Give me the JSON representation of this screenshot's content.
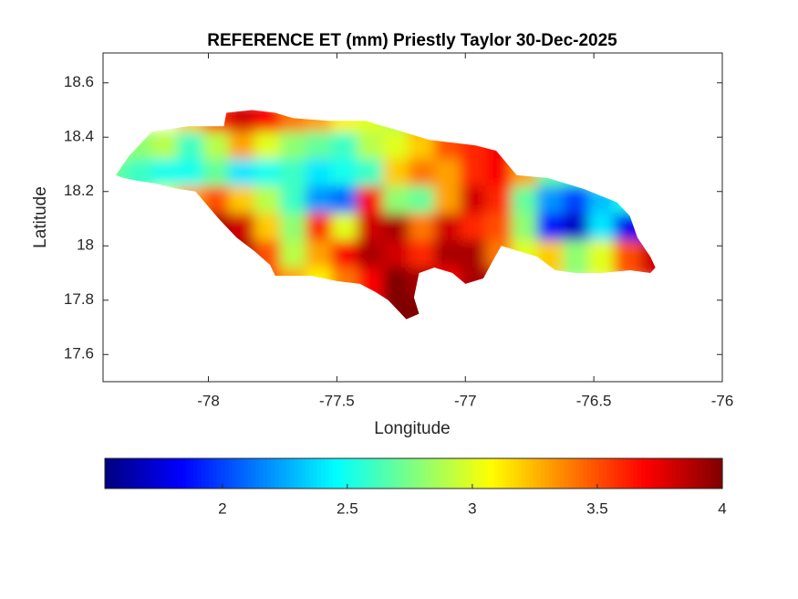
{
  "chart_data": {
    "type": "map",
    "title": "REFERENCE ET (mm) Priestly Taylor 30-Dec-2025",
    "x_label": "Longitude",
    "y_label": "Latitude",
    "xlim": [
      -78.41,
      -76
    ],
    "ylim": [
      17.5,
      18.71
    ],
    "xticks": [
      -78,
      -77.5,
      -77,
      -76.5,
      -76
    ],
    "yticks": [
      17.6,
      17.8,
      18,
      18.2,
      18.4,
      18.6
    ],
    "colormap": "jet",
    "clim": [
      1.53,
      4
    ],
    "cticks": [
      2,
      2.5,
      3,
      3.5,
      4
    ],
    "outline": {
      "lon": [
        -78.36,
        -78.31,
        -78.26,
        -78.22,
        -78.15,
        -78.08,
        -77.94,
        -77.93,
        -77.83,
        -77.74,
        -77.67,
        -77.53,
        -77.39,
        -77.28,
        -77.14,
        -76.96,
        -76.88,
        -76.8,
        -76.68,
        -76.54,
        -76.41,
        -76.36,
        -76.33,
        -76.28,
        -76.26,
        -76.28,
        -76.36,
        -76.47,
        -76.57,
        -76.65,
        -76.72,
        -76.79,
        -76.86,
        -76.89,
        -76.93,
        -77.0,
        -77.05,
        -77.12,
        -77.18,
        -77.2,
        -77.18,
        -77.23,
        -77.3,
        -77.35,
        -77.41,
        -77.5,
        -77.6,
        -77.74,
        -77.76,
        -77.82,
        -77.89,
        -77.96,
        -78.05,
        -78.12,
        -78.21,
        -78.28,
        -78.33
      ],
      "lat": [
        18.26,
        18.33,
        18.38,
        18.42,
        18.43,
        18.44,
        18.44,
        18.49,
        18.5,
        18.49,
        18.47,
        18.46,
        18.46,
        18.43,
        18.39,
        18.37,
        18.35,
        18.26,
        18.25,
        18.21,
        18.16,
        18.11,
        18.03,
        17.96,
        17.92,
        17.9,
        17.91,
        17.9,
        17.9,
        17.91,
        17.96,
        17.98,
        18.0,
        17.95,
        17.88,
        17.86,
        17.9,
        17.92,
        17.9,
        17.81,
        17.75,
        17.73,
        17.8,
        17.83,
        17.86,
        17.87,
        17.89,
        17.89,
        17.93,
        17.98,
        18.03,
        18.1,
        18.2,
        18.21,
        18.23,
        18.24,
        18.25
      ]
    },
    "lon": [
      -78.35,
      -78.25,
      -78.15,
      -78.05,
      -77.95,
      -77.85,
      -77.75,
      -77.65,
      -77.55,
      -77.45,
      -77.35,
      -77.25,
      -77.15,
      -77.05,
      -76.95,
      -76.85,
      -76.75,
      -76.65,
      -76.55,
      -76.45,
      -76.35,
      -76.25
    ],
    "lat": [
      18.45,
      18.35,
      18.25,
      18.15,
      18.05,
      17.95,
      17.85,
      17.75
    ],
    "cell_size": 0.1,
    "values": [
      [
        null,
        null,
        null,
        3.2,
        3.6,
        3.8,
        3.7,
        3.4,
        3.3,
        3.1,
        3.0,
        2.9,
        3.4,
        null,
        null,
        null,
        null,
        null,
        null,
        null,
        null,
        null
      ],
      [
        2.9,
        2.8,
        2.9,
        2.6,
        2.9,
        3.3,
        3.0,
        2.8,
        2.7,
        2.6,
        2.9,
        3.0,
        3.2,
        3.5,
        3.6,
        3.7,
        null,
        null,
        null,
        null,
        null,
        null
      ],
      [
        2.7,
        2.6,
        2.5,
        2.5,
        2.7,
        2.4,
        2.5,
        2.6,
        2.4,
        2.5,
        2.6,
        3.2,
        3.4,
        3.3,
        3.6,
        3.7,
        3.3,
        2.7,
        2.6,
        2.8,
        null,
        null
      ],
      [
        null,
        null,
        3.0,
        3.3,
        3.5,
        3.2,
        2.9,
        2.6,
        2.2,
        2.1,
        3.7,
        2.8,
        2.7,
        3.3,
        3.8,
        3.6,
        2.7,
        2.2,
        2.0,
        2.3,
        2.5,
        null
      ],
      [
        null,
        null,
        null,
        null,
        3.9,
        3.8,
        3.2,
        2.8,
        3.6,
        3.0,
        3.8,
        3.9,
        3.4,
        3.8,
        3.6,
        3.5,
        2.8,
        1.9,
        1.7,
        2.4,
        1.8,
        null
      ],
      [
        null,
        null,
        null,
        null,
        null,
        3.9,
        3.5,
        2.9,
        3.3,
        3.7,
        3.9,
        3.8,
        3.6,
        3.9,
        3.9,
        3.4,
        3.0,
        3.2,
        2.8,
        3.0,
        3.5,
        3.8
      ],
      [
        null,
        null,
        null,
        null,
        null,
        null,
        3.5,
        3.3,
        3.1,
        3.4,
        3.7,
        4.0,
        3.9,
        3.7,
        3.9,
        null,
        null,
        null,
        null,
        null,
        null,
        null
      ],
      [
        null,
        null,
        null,
        null,
        null,
        null,
        null,
        null,
        null,
        null,
        null,
        4.0,
        4.0,
        null,
        null,
        null,
        null,
        null,
        null,
        null,
        null,
        null
      ]
    ]
  }
}
